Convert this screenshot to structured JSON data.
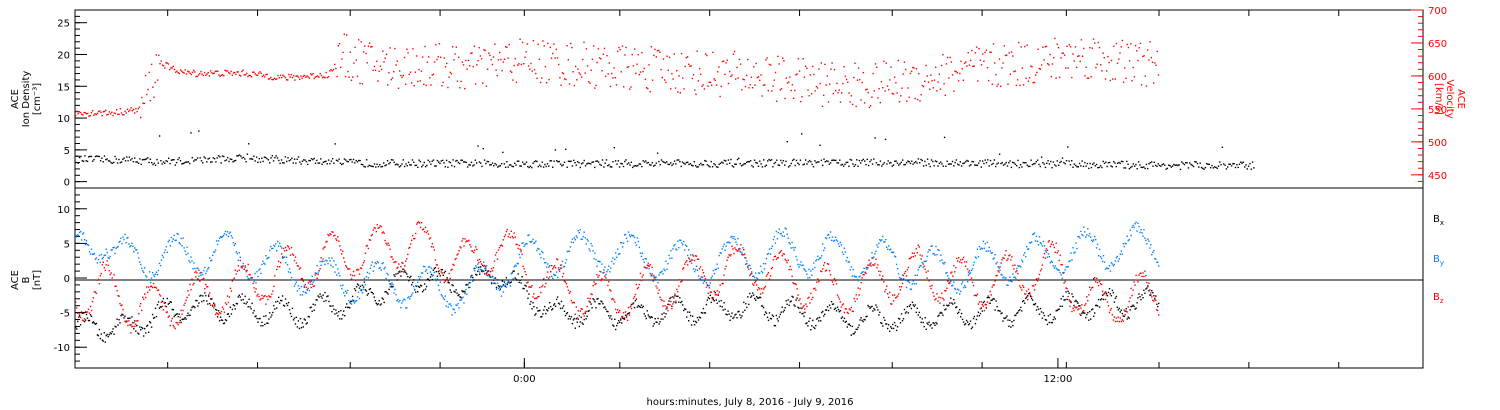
{
  "chart_data": [
    {
      "type": "scatter",
      "panel": "ion-density-velocity",
      "ylabel_left": [
        "ACE",
        "Ion Density",
        "[cm⁻³]"
      ],
      "ylabel_right": [
        "ACE",
        "Velocity",
        "[km/s]"
      ],
      "left_axis": {
        "ylim": [
          -1,
          27
        ],
        "ticks": [
          0,
          5,
          10,
          15,
          20,
          25
        ],
        "color": "#000000"
      },
      "right_axis": {
        "ylim": [
          430,
          700
        ],
        "ticks": [
          450,
          500,
          550,
          600,
          650,
          700
        ],
        "color": "#ff0000"
      },
      "series": [
        {
          "axis": "left",
          "color": "#000000",
          "anchors": [
            [
              0,
              3.6
            ],
            [
              2,
              3.5
            ],
            [
              3,
              3.2
            ],
            [
              6,
              3.8
            ],
            [
              10,
              3.0
            ],
            [
              16,
              2.9
            ],
            [
              24,
              3.0
            ],
            [
              30,
              3.1
            ],
            [
              36,
              2.8
            ],
            [
              40,
              2.6
            ],
            [
              42,
              2.6
            ]
          ]
        },
        {
          "axis": "right",
          "color": "#ff0000",
          "anchors": [
            [
              0,
              545
            ],
            [
              1.3,
              545
            ],
            [
              2.3,
              550
            ],
            [
              2.6,
              582
            ],
            [
              3.0,
              622
            ],
            [
              3.4,
              612
            ],
            [
              4,
              605
            ],
            [
              6,
              605
            ],
            [
              7.5,
              598
            ],
            [
              9,
              603
            ],
            [
              9.5,
              630
            ],
            [
              11,
              615
            ],
            [
              13,
              617
            ],
            [
              14,
              610
            ],
            [
              15,
              620
            ],
            [
              16,
              625
            ],
            [
              18,
              618
            ],
            [
              20,
              612
            ],
            [
              22,
              607
            ],
            [
              24,
              602
            ],
            [
              26,
              592
            ],
            [
              28,
              585
            ],
            [
              30,
              595
            ],
            [
              32,
              612
            ],
            [
              34,
              620
            ],
            [
              36,
              632
            ],
            [
              37,
              622
            ],
            [
              38.6,
              618
            ]
          ]
        }
      ]
    },
    {
      "type": "scatter",
      "panel": "magnetic-field",
      "ylabel_left": [
        "ACE",
        "B",
        "[nT]"
      ],
      "ylim": [
        -13,
        13
      ],
      "ticks": [
        -10,
        -5,
        0,
        5,
        10
      ],
      "legend": [
        {
          "label": "B",
          "sub": "x",
          "color": "#000000"
        },
        {
          "label": "B",
          "sub": "y",
          "color": "#0080ff"
        },
        {
          "label": "B",
          "sub": "z",
          "color": "#ff0000"
        }
      ],
      "series": [
        {
          "name": "Bx",
          "color": "#000000",
          "base": [
            [
              0,
              -7
            ],
            [
              2,
              -7
            ],
            [
              3,
              -5
            ],
            [
              5,
              -4
            ],
            [
              8,
              -5
            ],
            [
              10,
              -3
            ],
            [
              12,
              0
            ],
            [
              14,
              -1
            ],
            [
              15,
              1
            ],
            [
              17,
              -5
            ],
            [
              20,
              -5
            ],
            [
              24,
              -4
            ],
            [
              28,
              -6
            ],
            [
              32,
              -5
            ],
            [
              36,
              -4
            ],
            [
              38.6,
              -3
            ]
          ],
          "amp": 1.6,
          "period": 1.4
        },
        {
          "name": "By",
          "color": "#0080ff",
          "base": [
            [
              0,
              4
            ],
            [
              1,
              6
            ],
            [
              1.5,
              3
            ],
            [
              3,
              3
            ],
            [
              5,
              4
            ],
            [
              7,
              2
            ],
            [
              9,
              0
            ],
            [
              12,
              -1
            ],
            [
              14,
              -2
            ],
            [
              16,
              3
            ],
            [
              19,
              4
            ],
            [
              22,
              2
            ],
            [
              25,
              4
            ],
            [
              28,
              3
            ],
            [
              31,
              1
            ],
            [
              34,
              3
            ],
            [
              36,
              4
            ],
            [
              38.6,
              5
            ]
          ],
          "amp": 2.8,
          "period": 1.8
        },
        {
          "name": "Bz",
          "color": "#ff0000",
          "base": [
            [
              0,
              -3
            ],
            [
              1,
              -1
            ],
            [
              2,
              -4
            ],
            [
              3,
              -4
            ],
            [
              6,
              -1
            ],
            [
              9,
              3
            ],
            [
              12,
              5
            ],
            [
              14,
              2
            ],
            [
              15,
              5
            ],
            [
              17,
              -1
            ],
            [
              19,
              -3
            ],
            [
              21,
              -1
            ],
            [
              24,
              2
            ],
            [
              27,
              -2
            ],
            [
              30,
              1
            ],
            [
              32,
              -1
            ],
            [
              35,
              2
            ],
            [
              36,
              -4
            ],
            [
              38.6,
              -2
            ]
          ],
          "amp": 3.2,
          "period": 1.6
        }
      ]
    }
  ],
  "x_axis": {
    "xlim": [
      0,
      48
    ],
    "tick_labels": [
      {
        "hour": 16,
        "label": "0:00"
      },
      {
        "hour": 35,
        "label": "12:00"
      }
    ],
    "minor_tick_hours": [
      3.3,
      6.5,
      9.8,
      13,
      16,
      19.4,
      22.6,
      25.8,
      29.1,
      32.3,
      35.3,
      38.6,
      41.8,
      45
    ],
    "xlabel": "hours:minutes, July  8, 2016 - July  9, 2016"
  }
}
